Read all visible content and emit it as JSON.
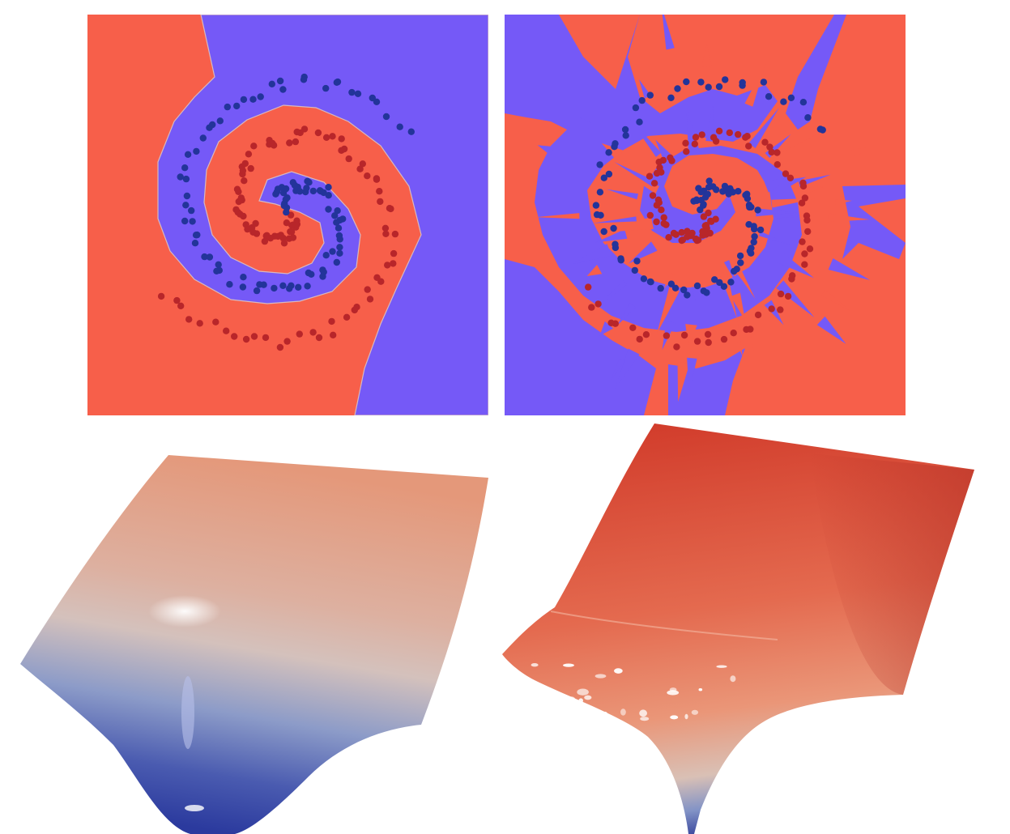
{
  "figure": {
    "panels": [
      {
        "id": "boundary-smooth",
        "kind": "decision-boundary",
        "class_colors": {
          "class_a": "#F75F4A",
          "class_b": "#7559F7"
        },
        "point_colors": {
          "class_a": "#B8262A",
          "class_b": "#23349A"
        }
      },
      {
        "id": "boundary-jagged",
        "kind": "decision-boundary",
        "class_colors": {
          "class_a": "#F75F4A",
          "class_b": "#7559F7"
        },
        "point_colors": {
          "class_a": "#B8262A",
          "class_b": "#23349A"
        }
      },
      {
        "id": "surface-smooth",
        "kind": "3d-surface",
        "colormap": [
          "#2B3A9E",
          "#7D8FC4",
          "#D2C0BA",
          "#E4987A"
        ]
      },
      {
        "id": "surface-jagged",
        "kind": "3d-surface",
        "colormap": [
          "#3B46A6",
          "#7D8FC4",
          "#E9A184",
          "#C1362A"
        ]
      }
    ]
  }
}
